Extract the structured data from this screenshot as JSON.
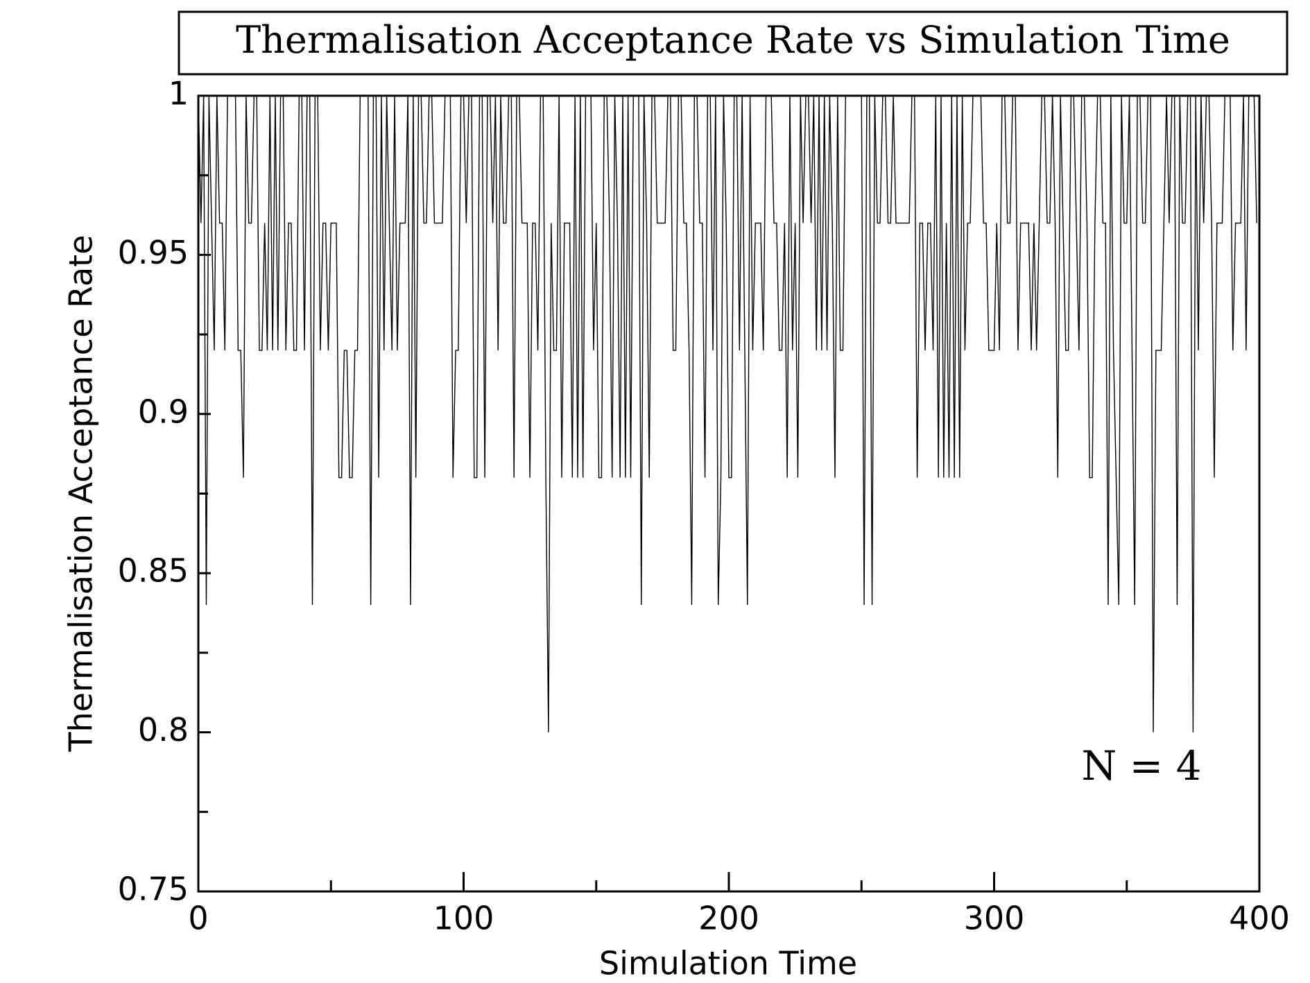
{
  "chart_data": {
    "type": "line",
    "title": "Thermalisation Acceptance Rate vs Simulation Time",
    "xlabel": "Simulation Time",
    "ylabel": "Thermalisation Acceptance Rate",
    "annotation": "N = 4",
    "color": "#000000",
    "xlim": [
      0,
      400
    ],
    "xticks": [
      0,
      100,
      200,
      300,
      400
    ],
    "xminorticks": [
      50,
      150,
      250,
      350
    ],
    "ylim": [
      0.75,
      1
    ],
    "yticks": [
      0.75,
      0.8,
      0.85,
      0.9,
      0.95,
      1
    ],
    "yminorticks": [
      0.775,
      0.825,
      0.875,
      0.925,
      0.975
    ],
    "grid": false,
    "x": [
      0,
      1,
      2,
      3,
      4,
      5,
      6,
      7,
      8,
      9,
      10,
      11,
      12,
      13,
      14,
      15,
      16,
      17,
      18,
      19,
      20,
      21,
      22,
      23,
      24,
      25,
      26,
      27,
      28,
      29,
      30,
      31,
      32,
      33,
      34,
      35,
      36,
      37,
      38,
      39,
      40,
      41,
      42,
      43,
      44,
      45,
      46,
      47,
      48,
      49,
      50,
      51,
      52,
      53,
      54,
      55,
      56,
      57,
      58,
      59,
      60,
      61,
      62,
      63,
      64,
      65,
      66,
      67,
      68,
      69,
      70,
      71,
      72,
      73,
      74,
      75,
      76,
      77,
      78,
      79,
      80,
      81,
      82,
      83,
      84,
      85,
      86,
      87,
      88,
      89,
      90,
      91,
      92,
      93,
      94,
      95,
      96,
      97,
      98,
      99,
      100,
      101,
      102,
      103,
      104,
      105,
      106,
      107,
      108,
      109,
      110,
      111,
      112,
      113,
      114,
      115,
      116,
      117,
      118,
      119,
      120,
      121,
      122,
      123,
      124,
      125,
      126,
      127,
      128,
      129,
      130,
      131,
      132,
      133,
      134,
      135,
      136,
      137,
      138,
      139,
      140,
      141,
      142,
      143,
      144,
      145,
      146,
      147,
      148,
      149,
      150,
      151,
      152,
      153,
      154,
      155,
      156,
      157,
      158,
      159,
      160,
      161,
      162,
      163,
      164,
      165,
      166,
      167,
      168,
      169,
      170,
      171,
      172,
      173,
      174,
      175,
      176,
      177,
      178,
      179,
      180,
      181,
      182,
      183,
      184,
      185,
      186,
      187,
      188,
      189,
      190,
      191,
      192,
      193,
      194,
      195,
      196,
      197,
      198,
      199,
      200,
      201,
      202,
      203,
      204,
      205,
      206,
      207,
      208,
      209,
      210,
      211,
      212,
      213,
      214,
      215,
      216,
      217,
      218,
      219,
      220,
      221,
      222,
      223,
      224,
      225,
      226,
      227,
      228,
      229,
      230,
      231,
      232,
      233,
      234,
      235,
      236,
      237,
      238,
      239,
      240,
      241,
      242,
      243,
      244,
      245,
      246,
      247,
      248,
      249,
      250,
      251,
      252,
      253,
      254,
      255,
      256,
      257,
      258,
      259,
      260,
      261,
      262,
      263,
      264,
      265,
      266,
      267,
      268,
      269,
      270,
      271,
      272,
      273,
      274,
      275,
      276,
      277,
      278,
      279,
      280,
      281,
      282,
      283,
      284,
      285,
      286,
      287,
      288,
      289,
      290,
      291,
      292,
      293,
      294,
      295,
      296,
      297,
      298,
      299,
      300,
      301,
      302,
      303,
      304,
      305,
      306,
      307,
      308,
      309,
      310,
      311,
      312,
      313,
      314,
      315,
      316,
      317,
      318,
      319,
      320,
      321,
      322,
      323,
      324,
      325,
      326,
      327,
      328,
      329,
      330,
      331,
      332,
      333,
      334,
      335,
      336,
      337,
      338,
      339,
      340,
      341,
      342,
      343,
      344,
      345,
      346,
      347,
      348,
      349,
      350,
      351,
      352,
      353,
      354,
      355,
      356,
      357,
      358,
      359,
      360,
      361,
      362,
      363,
      364,
      365,
      366,
      367,
      368,
      369,
      370,
      371,
      372,
      373,
      374,
      375,
      376,
      377,
      378,
      379,
      380,
      381,
      382,
      383,
      384,
      385,
      386,
      387,
      388,
      389,
      390,
      391,
      392,
      393,
      394,
      395,
      396,
      397,
      398,
      399
    ],
    "values": [
      1,
      0.96,
      1,
      0.84,
      1,
      0.96,
      0.92,
      1,
      0.96,
      0.96,
      0.92,
      1,
      1,
      1,
      1,
      0.92,
      0.92,
      0.88,
      1,
      0.96,
      0.96,
      1,
      1,
      0.92,
      0.92,
      0.96,
      0.92,
      1,
      0.92,
      1,
      0.92,
      1,
      1,
      0.92,
      0.96,
      0.96,
      0.92,
      0.92,
      1,
      1,
      0.92,
      1,
      1,
      0.84,
      1,
      1,
      0.92,
      0.96,
      0.96,
      0.92,
      0.96,
      0.96,
      0.96,
      0.88,
      0.88,
      0.92,
      0.92,
      0.88,
      0.88,
      0.92,
      0.92,
      1,
      1,
      1,
      1,
      0.84,
      1,
      1,
      0.88,
      1,
      0.92,
      1,
      0.96,
      0.92,
      1,
      0.92,
      0.96,
      0.96,
      0.96,
      1,
      0.84,
      1,
      0.88,
      1,
      1,
      0.96,
      0.96,
      1,
      1,
      0.96,
      0.96,
      0.96,
      0.96,
      1,
      1,
      1,
      0.88,
      0.92,
      0.92,
      1,
      1,
      0.96,
      1,
      1,
      0.88,
      0.88,
      1,
      1,
      0.88,
      1,
      1,
      0.96,
      1,
      0.92,
      1,
      0.96,
      0.96,
      1,
      1,
      0.88,
      1,
      1,
      0.96,
      0.96,
      0.96,
      0.88,
      0.96,
      0.96,
      0.92,
      1,
      1,
      0.88,
      0.8,
      0.96,
      0.92,
      0.92,
      1,
      0.88,
      0.96,
      0.96,
      0.96,
      0.88,
      1,
      0.88,
      1,
      0.88,
      1,
      1,
      1,
      0.92,
      0.96,
      0.88,
      0.88,
      1,
      1,
      0.96,
      0.88,
      1,
      0.96,
      0.88,
      1,
      0.88,
      1,
      0.88,
      1,
      1,
      1,
      0.84,
      1,
      0.96,
      0.88,
      1,
      1,
      0.96,
      0.96,
      0.96,
      0.96,
      1,
      1,
      0.92,
      0.92,
      1,
      1,
      0.96,
      0.96,
      0.92,
      0.84,
      1,
      1,
      0.96,
      0.96,
      0.88,
      1,
      1,
      0.92,
      1,
      0.84,
      0.88,
      1,
      0.96,
      0.88,
      0.88,
      1,
      1,
      0.92,
      1,
      0.92,
      0.84,
      1,
      0.92,
      0.96,
      0.96,
      0.96,
      0.92,
      1,
      1,
      1,
      0.96,
      0.96,
      0.92,
      0.92,
      0.96,
      0.88,
      1,
      0.92,
      0.96,
      0.88,
      1,
      0.96,
      1,
      1,
      0.96,
      1,
      0.92,
      1,
      0.92,
      1,
      0.92,
      1,
      0.96,
      0.88,
      1,
      0.92,
      0.92,
      1,
      1,
      1,
      1,
      1,
      1,
      1,
      0.84,
      1,
      1,
      0.84,
      1,
      0.96,
      0.96,
      1,
      1,
      0.96,
      0.96,
      1,
      0.96,
      0.96,
      0.96,
      0.96,
      0.96,
      0.96,
      1,
      1,
      0.88,
      0.96,
      0.96,
      0.92,
      0.96,
      0.96,
      0.92,
      1,
      0.88,
      1,
      0.88,
      0.96,
      0.88,
      1,
      0.88,
      1,
      0.88,
      1,
      0.92,
      0.96,
      0.96,
      1,
      1,
      1,
      1,
      0.96,
      0.96,
      0.92,
      0.92,
      0.92,
      0.96,
      0.92,
      1,
      1,
      0.96,
      0.96,
      1,
      1,
      0.92,
      0.96,
      0.96,
      0.96,
      0.96,
      0.92,
      0.96,
      0.92,
      0.96,
      1,
      1,
      0.96,
      0.96,
      1,
      0.96,
      0.88,
      1,
      0.96,
      0.92,
      0.92,
      1,
      1,
      0.96,
      0.92,
      1,
      1,
      0.96,
      0.88,
      0.88,
      0.96,
      1,
      1,
      0.96,
      0.96,
      0.84,
      1,
      0.92,
      0.88,
      0.84,
      1,
      0.96,
      0.96,
      1,
      0.92,
      0.84,
      1,
      1,
      0.96,
      0.96,
      1,
      1,
      0.8,
      0.92,
      0.92,
      0.92,
      0.96,
      1,
      0.96,
      1,
      1,
      0.84,
      1,
      0.96,
      0.96,
      1,
      1,
      0.8,
      1,
      0.92,
      1,
      0.96,
      1,
      1,
      0.96,
      0.88,
      0.96,
      0.96,
      0.96,
      1,
      1,
      1,
      0.92,
      0.96,
      0.96,
      0.96,
      1,
      0.92,
      1,
      1,
      1,
      0.96
    ]
  }
}
